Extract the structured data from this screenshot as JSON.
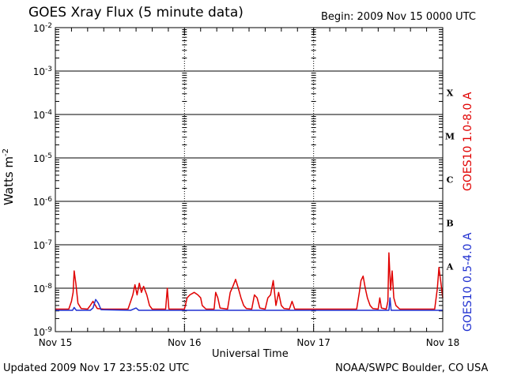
{
  "header": {
    "title": "GOES Xray Flux (5 minute data)",
    "begin": "Begin:  2009 Nov 15 0000 UTC"
  },
  "footer": {
    "updated": "Updated 2009 Nov 17 23:55:02 UTC",
    "credit": "NOAA/SWPC Boulder, CO USA"
  },
  "chart_data": {
    "type": "line",
    "title": "GOES Xray Flux (5 minute data)",
    "xlabel": "Universal Time",
    "ylabel": "Watts m-2",
    "y_scale": "log",
    "ylim": [
      1e-09,
      0.01
    ],
    "xlim": [
      0,
      72
    ],
    "x_unit": "hours since 2009 Nov 15 0000 UTC",
    "x_ticks": [
      {
        "value": 0,
        "label": "Nov 15"
      },
      {
        "value": 24,
        "label": "Nov 16"
      },
      {
        "value": 48,
        "label": "Nov 17"
      },
      {
        "value": 72,
        "label": "Nov 18"
      }
    ],
    "y_ticks": [
      {
        "exp": -9,
        "label": "10-9"
      },
      {
        "exp": -8,
        "label": "10-8"
      },
      {
        "exp": -7,
        "label": "10-7"
      },
      {
        "exp": -6,
        "label": "10-6"
      },
      {
        "exp": -5,
        "label": "10-5"
      },
      {
        "exp": -4,
        "label": "10-4"
      },
      {
        "exp": -3,
        "label": "10-3"
      },
      {
        "exp": -2,
        "label": "10-2"
      }
    ],
    "flare_classes": [
      {
        "label": "X",
        "exp": -4
      },
      {
        "label": "M",
        "exp": -5
      },
      {
        "label": "C",
        "exp": -6
      },
      {
        "label": "B",
        "exp": -7
      },
      {
        "label": "A",
        "exp": -8
      }
    ],
    "grid": true,
    "series": [
      {
        "name": "GOES10 1.0-8.0 A",
        "color": "#e00000",
        "points": [
          [
            0,
            3.3e-09
          ],
          [
            2.5,
            3.3e-09
          ],
          [
            3.0,
            5e-09
          ],
          [
            3.3,
            8e-09
          ],
          [
            3.5,
            2.5e-08
          ],
          [
            3.8,
            1.3e-08
          ],
          [
            4.2,
            4.5e-09
          ],
          [
            4.8,
            3.4e-09
          ],
          [
            6,
            3.3e-09
          ],
          [
            6.5,
            4e-09
          ],
          [
            7,
            5e-09
          ],
          [
            7.3,
            4.3e-09
          ],
          [
            7.8,
            3.4e-09
          ],
          [
            9,
            3.3e-09
          ],
          [
            13.5,
            3.3e-09
          ],
          [
            14.0,
            5e-09
          ],
          [
            14.4,
            7e-09
          ],
          [
            14.8,
            1.2e-08
          ],
          [
            15.2,
            7e-09
          ],
          [
            15.6,
            1.3e-08
          ],
          [
            16.0,
            8e-09
          ],
          [
            16.4,
            1.1e-08
          ],
          [
            17.0,
            7e-09
          ],
          [
            17.5,
            4e-09
          ],
          [
            18,
            3.3e-09
          ],
          [
            20.5,
            3.3e-09
          ],
          [
            20.8,
            1e-08
          ],
          [
            21.1,
            3.3e-09
          ],
          [
            24,
            3.3e-09
          ],
          [
            24.5,
            6e-09
          ],
          [
            25.0,
            7e-09
          ],
          [
            25.8,
            8e-09
          ],
          [
            26.5,
            7e-09
          ],
          [
            27.0,
            6e-09
          ],
          [
            27.3,
            4e-09
          ],
          [
            28,
            3.3e-09
          ],
          [
            29.5,
            3.3e-09
          ],
          [
            29.8,
            8e-09
          ],
          [
            30.2,
            6e-09
          ],
          [
            30.6,
            3.5e-09
          ],
          [
            32,
            3.3e-09
          ],
          [
            32.5,
            8e-09
          ],
          [
            33.0,
            1.1e-08
          ],
          [
            33.5,
            1.6e-08
          ],
          [
            34.0,
            1e-08
          ],
          [
            34.5,
            6e-09
          ],
          [
            35.0,
            4e-09
          ],
          [
            35.5,
            3.4e-09
          ],
          [
            36.5,
            3.3e-09
          ],
          [
            37.0,
            7e-09
          ],
          [
            37.5,
            6e-09
          ],
          [
            38.0,
            3.5e-09
          ],
          [
            39.0,
            3.3e-09
          ],
          [
            39.5,
            6e-09
          ],
          [
            40.0,
            7e-09
          ],
          [
            40.5,
            1.5e-08
          ],
          [
            41.0,
            4e-09
          ],
          [
            41.5,
            8e-09
          ],
          [
            42.0,
            4e-09
          ],
          [
            42.5,
            3.4e-09
          ],
          [
            43.5,
            3.3e-09
          ],
          [
            44.0,
            5e-09
          ],
          [
            44.5,
            3.3e-09
          ],
          [
            56,
            3.3e-09
          ],
          [
            56.5,
            8e-09
          ],
          [
            56.8,
            1.5e-08
          ],
          [
            57.2,
            1.9e-08
          ],
          [
            57.6,
            1e-08
          ],
          [
            58.0,
            6e-09
          ],
          [
            58.5,
            4e-09
          ],
          [
            59,
            3.4e-09
          ],
          [
            60,
            3.3e-09
          ],
          [
            60.3,
            6e-09
          ],
          [
            60.6,
            3.5e-09
          ],
          [
            61.5,
            3.3e-09
          ],
          [
            61.8,
            5e-09
          ],
          [
            62.0,
            6.5e-08
          ],
          [
            62.3,
            9e-09
          ],
          [
            62.6,
            2.5e-08
          ],
          [
            62.9,
            6e-09
          ],
          [
            63.3,
            4e-09
          ],
          [
            64,
            3.3e-09
          ],
          [
            70.5,
            3.3e-09
          ],
          [
            71.0,
            1e-08
          ],
          [
            71.3,
            3e-08
          ],
          [
            71.6,
            1.5e-08
          ],
          [
            72,
            6e-09
          ]
        ]
      },
      {
        "name": "GOES10 0.5-4.0 A",
        "color": "#2030d0",
        "points": [
          [
            0,
            3.1e-09
          ],
          [
            3.2,
            3.1e-09
          ],
          [
            3.5,
            3.6e-09
          ],
          [
            3.9,
            3.1e-09
          ],
          [
            6.5,
            3.1e-09
          ],
          [
            7.0,
            3.5e-09
          ],
          [
            7.5,
            5.5e-09
          ],
          [
            8.0,
            4.5e-09
          ],
          [
            8.5,
            3.2e-09
          ],
          [
            14,
            3.1e-09
          ],
          [
            15.0,
            3.5e-09
          ],
          [
            15.5,
            3.1e-09
          ],
          [
            24,
            3.1e-09
          ],
          [
            62.0,
            3.1e-09
          ],
          [
            62.2,
            6e-09
          ],
          [
            62.4,
            3.1e-09
          ],
          [
            72,
            3.1e-09
          ]
        ]
      }
    ]
  }
}
